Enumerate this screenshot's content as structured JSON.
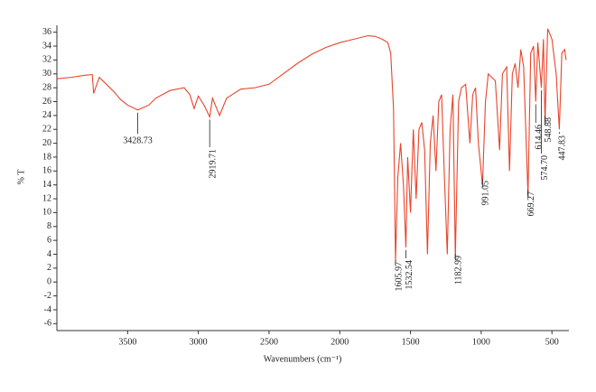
{
  "chart_data": {
    "type": "line",
    "xlabel": "Wavenumbers (cm⁻¹)",
    "ylabel": "% T",
    "xlim": [
      4000,
      380
    ],
    "xticks": [
      3500,
      3000,
      2500,
      2000,
      1500,
      1000,
      500
    ],
    "ylim": [
      -7,
      37
    ],
    "yticks": [
      -6,
      -4,
      -2,
      0,
      2,
      4,
      6,
      8,
      10,
      12,
      14,
      16,
      18,
      20,
      22,
      24,
      26,
      28,
      30,
      32,
      34,
      36
    ],
    "series": [
      {
        "color": "#e8442a",
        "x": [
          4000,
          3900,
          3800,
          3750,
          3740,
          3700,
          3650,
          3600,
          3550,
          3500,
          3428.73,
          3350,
          3300,
          3200,
          3100,
          3060,
          3030,
          3000,
          2960,
          2919.71,
          2900,
          2850,
          2800,
          2700,
          2600,
          2500,
          2400,
          2300,
          2200,
          2100,
          2000,
          1900,
          1800,
          1750,
          1700,
          1660,
          1640,
          1620,
          1605.97,
          1590,
          1570,
          1550,
          1532.54,
          1520,
          1500,
          1480,
          1460,
          1440,
          1420,
          1400,
          1380,
          1360,
          1340,
          1320,
          1300,
          1280,
          1260,
          1240,
          1220,
          1200,
          1182.99,
          1160,
          1140,
          1110,
          1080,
          1060,
          1040,
          1020,
          991.05,
          970,
          950,
          900,
          870,
          850,
          820,
          800,
          780,
          760,
          740,
          720,
          700,
          669.27,
          650,
          630,
          614.46,
          600,
          574.7,
          560,
          548.88,
          530,
          500,
          470,
          447.83,
          430,
          410,
          400
        ],
        "values": [
          29.3,
          29.5,
          29.8,
          29.9,
          27.2,
          29.5,
          28.5,
          27.5,
          26.3,
          25.5,
          24.8,
          25.5,
          26.5,
          27.6,
          28.0,
          27.0,
          25.0,
          26.8,
          25.5,
          23.8,
          26.5,
          24.0,
          26.5,
          27.8,
          28.0,
          28.5,
          30.0,
          31.5,
          32.8,
          33.8,
          34.5,
          35.0,
          35.5,
          35.4,
          35.0,
          34.5,
          33.0,
          25,
          3,
          15,
          20,
          14,
          5,
          18,
          10,
          22,
          12,
          22,
          23,
          19,
          4,
          20,
          24,
          16,
          26,
          27,
          15,
          4,
          22,
          27,
          3.5,
          26,
          28,
          28.5,
          20,
          27,
          28,
          20,
          14,
          26,
          30,
          29,
          19,
          30,
          31,
          16,
          30,
          31.5,
          28,
          33.5,
          31,
          12.5,
          33,
          34,
          26,
          34.5,
          28,
          35,
          23,
          36.5,
          35,
          30,
          22,
          33,
          33.5,
          32
        ]
      }
    ],
    "peaks": [
      3428.73,
      2919.71,
      1605.97,
      1532.54,
      1182.99,
      991.05,
      669.27,
      614.46,
      574.7,
      548.88,
      447.83
    ],
    "peak_labels": [
      "3428.73",
      "2919.71",
      "1605.97",
      "1532.54",
      "1182.99",
      "991.05",
      "669.27",
      "614.46",
      "574.70",
      "548.88",
      "447.83"
    ]
  }
}
